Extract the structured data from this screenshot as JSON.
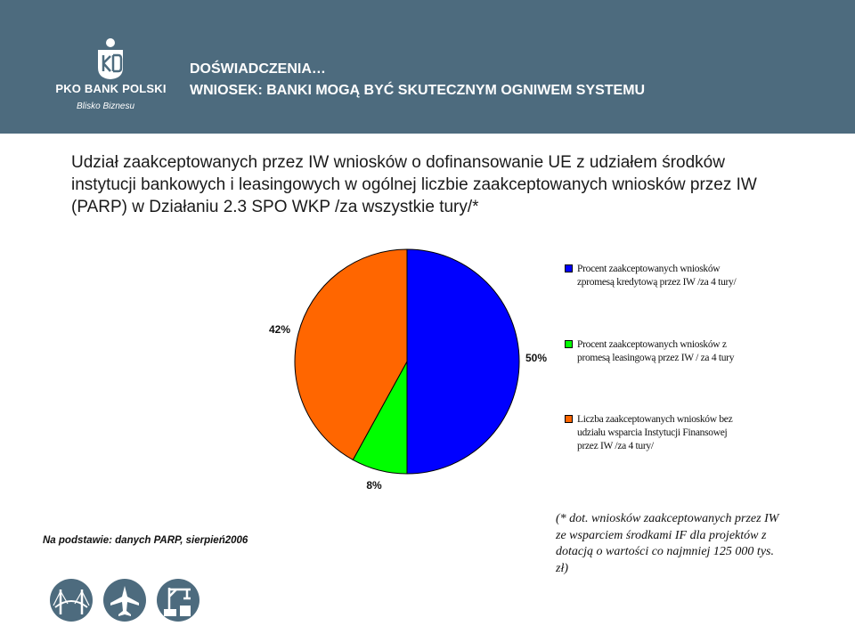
{
  "header": {
    "title_line1": "DOŚWIADCZENIA…",
    "title_line2": "WNIOSEK: BANKI MOGĄ BYĆ SKUTECZNYM OGNIWEM SYSTEMU",
    "brand_name": "PKO BANK POLSKI",
    "brand_tagline": "Blisko Biznesu",
    "color": "#4d6b7e"
  },
  "subtitle": "Udział zaakceptowanych przez IW wniosków o dofinansowanie UE z udziałem środków instytucji bankowych i leasingowych w ogólnej liczbie zaakceptowanych wniosków przez IW (PARP) w Działaniu 2.3 SPO WKP /za wszystkie tury/*",
  "chart_data": {
    "type": "pie",
    "slices": [
      {
        "label": "Procent zaakceptowanych wniosków zpromesą kredytową przez IW /za 4 tury/",
        "value": 50,
        "data_label": "50%",
        "color": "#0000ff"
      },
      {
        "label": "Procent zaakceptowanych wniosków z promesą leasingową przez IW / za 4 tury",
        "value": 8,
        "data_label": "8%",
        "color": "#00ff00"
      },
      {
        "label": "Liczba zaakceptowanych wniosków bez udziału wsparcia Instytucji Finansowej przez IW /za 4 tury/",
        "value": 42,
        "data_label": "42%",
        "color": "#ff6600"
      }
    ],
    "legend_position": "right"
  },
  "source_note": "Na podstawie: danych PARP, sierpień2006",
  "footnote": "(* dot. wniosków zaakceptowanych przez IW ze wsparciem środkami IF dla projektów z dotacją o wartości co najmniej 125 000 tys. zł)",
  "icons": [
    "bridge-icon",
    "airplane-icon",
    "industry-crane-icon"
  ]
}
